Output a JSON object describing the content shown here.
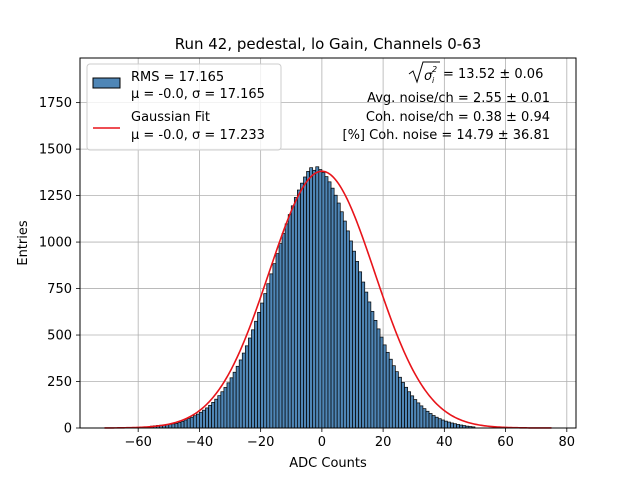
{
  "chart_data": {
    "type": "bar",
    "title": "Run 42, pedestal, lo Gain, Channels 0-63",
    "xlabel": "ADC Counts",
    "ylabel": "Entries",
    "xlim": [
      -79,
      83
    ],
    "ylim": [
      0,
      1990
    ],
    "xticks": [
      -60,
      -40,
      -20,
      0,
      20,
      40,
      60,
      80
    ],
    "yticks": [
      0,
      250,
      500,
      750,
      1000,
      1250,
      1500,
      1750
    ],
    "grid": true,
    "legend_placement": "top-left",
    "histogram": {
      "name": "RMS = 17.165",
      "name_line2": "μ = -0.0, σ = 17.165",
      "color": "#4f86b6",
      "edge_color": "#000000",
      "bin_start": -56,
      "bin_width": 1,
      "values": [
        10,
        12,
        14,
        15,
        17,
        18,
        20,
        22,
        25,
        30,
        36,
        43,
        51,
        58,
        66,
        75,
        85,
        96,
        108,
        122,
        138,
        155,
        174,
        195,
        218,
        243,
        270,
        300,
        332,
        366,
        403,
        442,
        484,
        528,
        574,
        622,
        672,
        723,
        776,
        829,
        884,
        938,
        992,
        1046,
        1098,
        1148,
        1195,
        1240,
        1280,
        1317,
        1350,
        1380,
        1400,
        1386,
        1405,
        1390,
        1375,
        1352,
        1324,
        1290,
        1252,
        1210,
        1163,
        1113,
        1060,
        1006,
        951,
        896,
        840,
        785,
        731,
        678,
        627,
        579,
        533,
        489,
        447,
        407,
        370,
        335,
        303,
        273,
        245,
        219,
        195,
        173,
        153,
        135,
        119,
        104,
        90,
        78,
        67,
        58,
        50,
        43,
        37,
        32,
        27,
        23,
        19,
        16,
        13,
        10,
        8,
        6
      ]
    },
    "fit": {
      "name": "Gaussian Fit",
      "name_line2": "μ = -0.0, σ = 17.233",
      "color": "#e8141a",
      "x_range": [
        -71,
        75
      ],
      "mu": 0.0,
      "sigma": 17.233,
      "amplitude": 1381
    },
    "annotations": {
      "line1_value": " = 13.52 ± 0.06",
      "line2": "Avg. noise/ch = 2.55 ± 0.01",
      "line3": "Coh. noise/ch = 0.38 ± 0.94",
      "line4": "[%] Coh. noise = 14.79 ± 36.81"
    }
  }
}
